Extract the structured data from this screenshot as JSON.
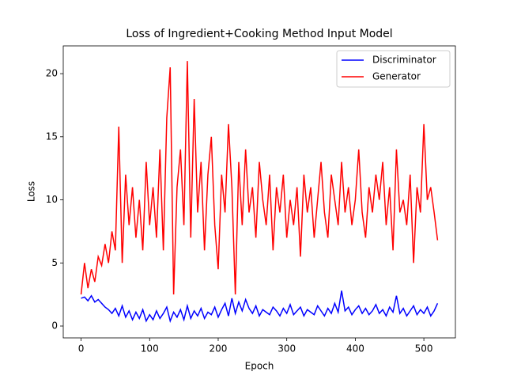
{
  "chart_data": {
    "type": "line",
    "title": "Loss of Ingredient+Cooking Method Input Model",
    "x_label": "Epoch",
    "y_label": "Loss",
    "x": [
      0,
      5,
      10,
      15,
      20,
      25,
      30,
      35,
      40,
      45,
      50,
      55,
      60,
      65,
      70,
      75,
      80,
      85,
      90,
      95,
      100,
      105,
      110,
      115,
      120,
      125,
      130,
      135,
      140,
      145,
      150,
      155,
      160,
      165,
      170,
      175,
      180,
      185,
      190,
      195,
      200,
      205,
      210,
      215,
      220,
      225,
      230,
      235,
      240,
      245,
      250,
      255,
      260,
      265,
      270,
      275,
      280,
      285,
      290,
      295,
      300,
      305,
      310,
      315,
      320,
      325,
      330,
      335,
      340,
      345,
      350,
      355,
      360,
      365,
      370,
      375,
      380,
      385,
      390,
      395,
      400,
      405,
      410,
      415,
      420,
      425,
      430,
      435,
      440,
      445,
      450,
      455,
      460,
      465,
      470,
      475,
      480,
      485,
      490,
      495,
      500,
      505,
      510,
      515,
      520
    ],
    "series": [
      {
        "name": "Discriminator",
        "color": "#0000ff",
        "values": [
          2.2,
          2.3,
          2.0,
          2.4,
          1.9,
          2.1,
          1.8,
          1.5,
          1.3,
          1.0,
          1.4,
          0.8,
          1.6,
          0.7,
          1.2,
          0.5,
          1.1,
          0.6,
          1.3,
          0.4,
          0.9,
          0.5,
          1.2,
          0.6,
          1.0,
          1.5,
          0.4,
          1.1,
          0.7,
          1.3,
          0.5,
          1.6,
          0.6,
          1.2,
          0.8,
          1.4,
          0.6,
          1.1,
          0.9,
          1.5,
          0.7,
          1.3,
          1.8,
          0.8,
          2.2,
          1.0,
          1.9,
          1.2,
          2.1,
          1.4,
          1.0,
          1.6,
          0.8,
          1.3,
          1.1,
          0.9,
          1.5,
          1.2,
          0.8,
          1.4,
          1.0,
          1.7,
          0.9,
          1.2,
          1.5,
          0.8,
          1.3,
          1.1,
          0.9,
          1.6,
          1.2,
          0.8,
          1.4,
          1.0,
          1.8,
          1.1,
          2.8,
          1.2,
          1.5,
          0.9,
          1.3,
          1.6,
          1.0,
          1.4,
          0.9,
          1.2,
          1.7,
          1.0,
          1.3,
          0.8,
          1.5,
          1.1,
          2.4,
          1.0,
          1.4,
          0.8,
          1.2,
          1.6,
          0.9,
          1.3,
          1.0,
          1.5,
          0.8,
          1.2,
          1.8
        ]
      },
      {
        "name": "Generator",
        "color": "#ff0000",
        "values": [
          2.5,
          5,
          3,
          4.5,
          3.5,
          5.5,
          4.8,
          6.5,
          5,
          7.5,
          6,
          15.8,
          5,
          12,
          8,
          11,
          7,
          10,
          6,
          13,
          8,
          11,
          7,
          14,
          6,
          16.5,
          20.5,
          2.5,
          11,
          14,
          8,
          21,
          7,
          18,
          9,
          13,
          6,
          12,
          15,
          8,
          4.5,
          12,
          9,
          16,
          11,
          2.5,
          13,
          8,
          14,
          9,
          11,
          7,
          13,
          10,
          8,
          12,
          6,
          11,
          9,
          12,
          7,
          10,
          8,
          11,
          5.5,
          12,
          9,
          11,
          7,
          10,
          13,
          9,
          7,
          12,
          10,
          8,
          13,
          9,
          11,
          8,
          10,
          14,
          9,
          7,
          11,
          9,
          12,
          10,
          13,
          8,
          11,
          6,
          14,
          9,
          10,
          8,
          12,
          5,
          11,
          9,
          16,
          10,
          11,
          9,
          6.8
        ]
      }
    ],
    "xlim": [
      -26,
      546
    ],
    "ylim": [
      -0.94,
      22.2
    ],
    "xticks": [
      0,
      100,
      200,
      300,
      400,
      500
    ],
    "yticks": [
      0,
      5,
      10,
      15,
      20
    ],
    "legend": "upper right"
  }
}
